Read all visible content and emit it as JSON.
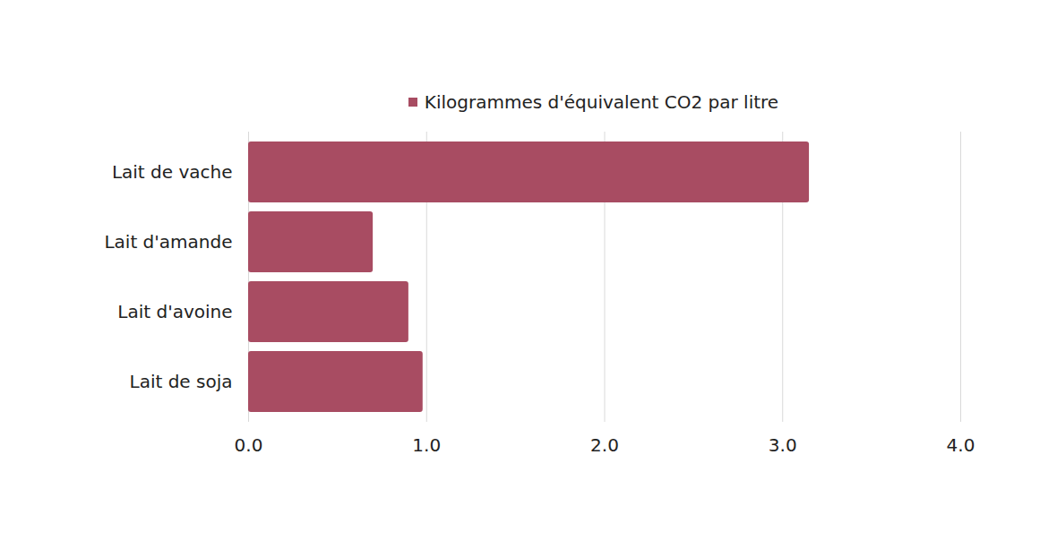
{
  "chart_data": {
    "type": "bar",
    "orientation": "horizontal",
    "categories": [
      "Lait de vache",
      "Lait d'amande",
      "Lait d'avoine",
      "Lait de soja"
    ],
    "series": [
      {
        "name": "Kilogrammes d'équivalent CO2 par litre",
        "color": "#a84c62",
        "values": [
          3.15,
          0.7,
          0.9,
          0.98
        ]
      }
    ],
    "xlim": [
      0,
      4
    ],
    "xticks": [
      0,
      1,
      2,
      3,
      4
    ],
    "grid": true,
    "legend": "top"
  }
}
